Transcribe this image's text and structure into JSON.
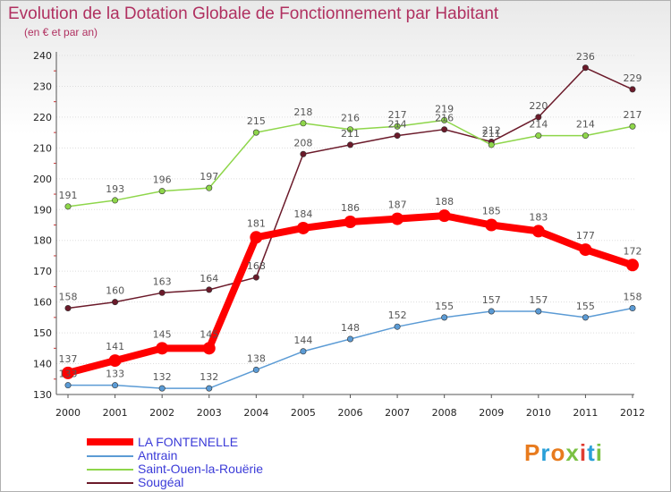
{
  "chart_data": {
    "type": "line",
    "title": "Evolution de la Dotation Globale de Fonctionnement par Habitant",
    "subtitle": "(en € et par an)",
    "xlabel": "",
    "ylabel": "",
    "x": [
      "2000",
      "2001",
      "2002",
      "2003",
      "2004",
      "2005",
      "2006",
      "2007",
      "2008",
      "2009",
      "2010",
      "2011",
      "2012"
    ],
    "ylim": [
      130,
      240
    ],
    "yticks": [
      "130",
      "140",
      "150",
      "160",
      "170",
      "180",
      "190",
      "200",
      "210",
      "220",
      "230",
      "240"
    ],
    "grid": "horizontal",
    "legend_position": "bottom-left",
    "series": [
      {
        "name": "LA FONTENELLE",
        "color": "#ff0000",
        "values": [
          137,
          141,
          145,
          145,
          181,
          184,
          186,
          187,
          188,
          185,
          183,
          177,
          172
        ]
      },
      {
        "name": "Antrain",
        "color": "#5b9bd5",
        "values": [
          133,
          133,
          132,
          132,
          138,
          144,
          148,
          152,
          155,
          157,
          157,
          155,
          158
        ]
      },
      {
        "name": "Saint-Ouen-la-Rouërie",
        "color": "#8ed64a",
        "values": [
          191,
          193,
          196,
          197,
          215,
          218,
          216,
          217,
          219,
          211,
          214,
          214,
          217
        ]
      },
      {
        "name": "Sougéal",
        "color": "#6b1a2a",
        "values": [
          158,
          160,
          163,
          164,
          168,
          208,
          211,
          214,
          216,
          212,
          220,
          236,
          229
        ]
      }
    ]
  },
  "logo": {
    "letters": [
      "P",
      "r",
      "o",
      "x",
      "i",
      "t",
      "i"
    ],
    "colors": [
      "#e87b1e",
      "#2aa0d8",
      "#e87b1e",
      "#7ac143",
      "#e03c31",
      "#2aa0d8",
      "#7ac143"
    ]
  }
}
